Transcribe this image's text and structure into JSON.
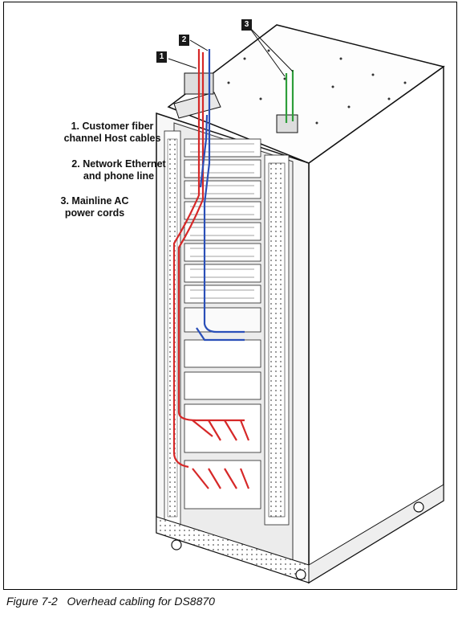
{
  "figure": {
    "callouts": [
      "1",
      "2",
      "3"
    ],
    "legend": [
      {
        "line1": "1. Customer fiber",
        "line2": "channel Host cables"
      },
      {
        "line1": "2. Network Ethernet",
        "line2": "and phone line"
      },
      {
        "line1": "3. Mainline AC",
        "line2": "power cords"
      }
    ],
    "cable_colors": {
      "fiber": "#d62828",
      "ethernet": "#2a4fb8",
      "power": "#2e9e3a"
    }
  },
  "caption": {
    "label": "Figure 7-2",
    "text": "Overhead cabling for DS8870"
  }
}
